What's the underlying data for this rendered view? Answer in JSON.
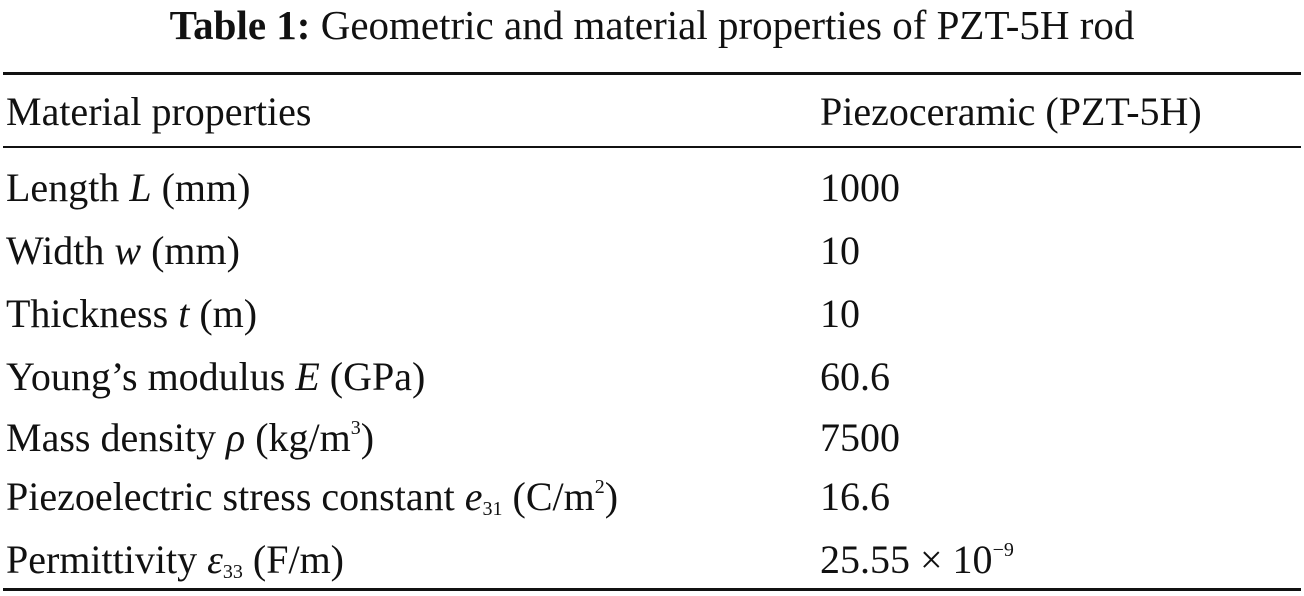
{
  "caption": {
    "label": "Table 1:",
    "text": "Geometric and material properties of PZT-5H rod"
  },
  "table": {
    "headers": {
      "property": "Material properties",
      "value": "Piezoceramic (PZT-5H)"
    },
    "rows": [
      {
        "pre": "Length ",
        "sym": "L",
        "sub": "",
        "post": " (mm)",
        "unit_sup": "",
        "post2": "",
        "value": "1000",
        "value_sup": ""
      },
      {
        "pre": "Width ",
        "sym": "w",
        "sub": "",
        "post": " (mm)",
        "unit_sup": "",
        "post2": "",
        "value": "10",
        "value_sup": ""
      },
      {
        "pre": "Thickness ",
        "sym": "t",
        "sub": "",
        "post": " (m)",
        "unit_sup": "",
        "post2": "",
        "value": "10",
        "value_sup": ""
      },
      {
        "pre": "Young’s modulus ",
        "sym": "E",
        "sub": "",
        "post": " (GPa)",
        "unit_sup": "",
        "post2": "",
        "value": "60.6",
        "value_sup": ""
      },
      {
        "pre": "Mass density ",
        "sym": "ρ",
        "sub": "",
        "post": " (kg/m",
        "unit_sup": "3",
        "post2": ")",
        "value": "7500",
        "value_sup": ""
      },
      {
        "pre": "Piezoelectric stress constant ",
        "sym": "e",
        "sub": "31",
        "post": " (C/m",
        "unit_sup": "2",
        "post2": ")",
        "value": "16.6",
        "value_sup": ""
      },
      {
        "pre": "Permittivity ",
        "sym": "ε",
        "sub": "33",
        "post": " (F/m)",
        "unit_sup": "",
        "post2": "",
        "value": "25.55 × 10",
        "value_sup": "−9"
      }
    ]
  }
}
